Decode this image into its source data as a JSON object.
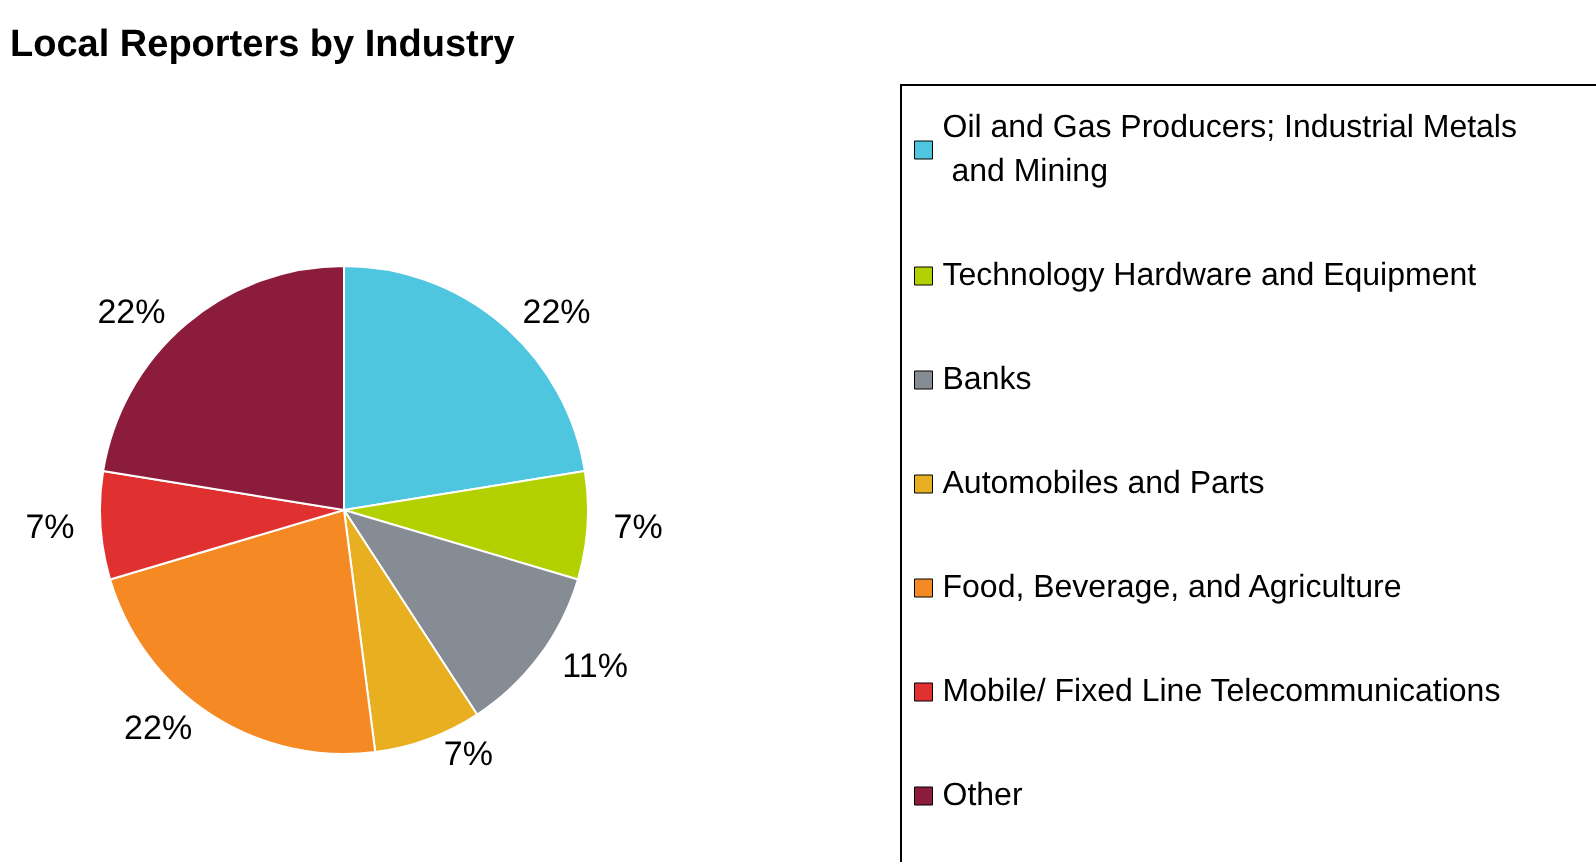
{
  "chart_data": {
    "type": "pie",
    "title": "Local Reporters by Industry",
    "categories": [
      "Oil and Gas Producers; Industrial Metals and Mining",
      "Technology Hardware and Equipment",
      "Banks",
      "Automobiles and Parts",
      "Food, Beverage, and Agriculture",
      "Mobile/ Fixed Line Telecommunications",
      "Other"
    ],
    "values": [
      22,
      7,
      11,
      7,
      22,
      7,
      22
    ],
    "colors": [
      "#4fc6e0",
      "#b3d100",
      "#858c94",
      "#e8b020",
      "#f58a24",
      "#e03030",
      "#8c1c3c"
    ],
    "legend": "right",
    "value_labels": [
      "22%",
      "7%",
      "11%",
      "7%",
      "22%",
      "7%",
      "22%"
    ]
  }
}
